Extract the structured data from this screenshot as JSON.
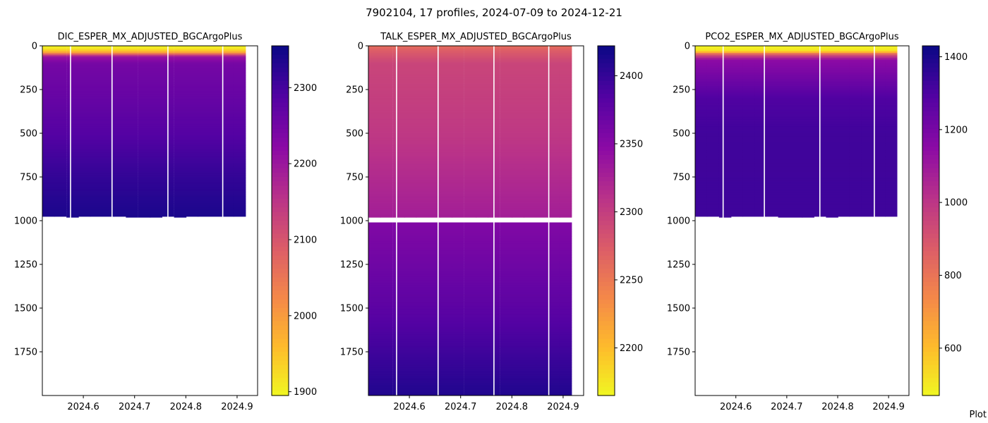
{
  "figure": {
    "title": "7902104, 17 profiles, 2024-07-09 to 2024-12-21",
    "watermark": "Plot"
  },
  "chart_data": [
    {
      "type": "heatmap",
      "title": "DIC_ESPER_MX_ADJUSTED_BGCArgoPlus",
      "xlabel": "",
      "ylabel": "",
      "xlim": [
        2024.52,
        2024.94
      ],
      "ylim": [
        2000,
        0
      ],
      "x_ticks": [
        2024.6,
        2024.7,
        2024.8,
        2024.9
      ],
      "x_tick_labels": [
        "2024.6",
        "2024.7",
        "2024.8",
        "2024.9"
      ],
      "y_ticks": [
        0,
        250,
        500,
        750,
        1000,
        1250,
        1500,
        1750
      ],
      "y_tick_labels": [
        "0",
        "250",
        "500",
        "750",
        "1000",
        "1250",
        "1500",
        "1750"
      ],
      "colormap": "plasma_r",
      "color_range": [
        1895,
        2355
      ],
      "colorbar_ticks": [
        1900,
        2000,
        2100,
        2200,
        2300
      ],
      "colorbar_tick_labels": [
        "1900",
        "2000",
        "2100",
        "2200",
        "2300"
      ],
      "profile_x": [
        2024.52,
        2024.543,
        2024.567,
        2024.59,
        2024.613,
        2024.637,
        2024.66,
        2024.683,
        2024.707,
        2024.73,
        2024.753,
        2024.777,
        2024.8,
        2024.823,
        2024.847,
        2024.87,
        2024.893
      ],
      "profile_width": 0.0233,
      "gap_x": [
        2024.575,
        2024.656,
        2024.765,
        2024.872
      ],
      "max_depth": [
        975,
        975,
        980,
        975,
        975,
        975,
        975,
        980,
        980,
        980,
        975,
        980,
        975,
        975,
        975,
        975,
        975
      ],
      "depth_gap": [],
      "color_stops": [
        {
          "depth": 0,
          "value": 1900
        },
        {
          "depth": 20,
          "value": 1920
        },
        {
          "depth": 40,
          "value": 2000
        },
        {
          "depth": 60,
          "value": 2200
        },
        {
          "depth": 100,
          "value": 2250
        },
        {
          "depth": 300,
          "value": 2268
        },
        {
          "depth": 500,
          "value": 2288
        },
        {
          "depth": 750,
          "value": 2320
        },
        {
          "depth": 1000,
          "value": 2345
        }
      ]
    },
    {
      "type": "heatmap",
      "title": "TALK_ESPER_MX_ADJUSTED_BGCArgoPlus",
      "xlabel": "",
      "ylabel": "",
      "xlim": [
        2024.52,
        2024.94
      ],
      "ylim": [
        2000,
        0
      ],
      "x_ticks": [
        2024.6,
        2024.7,
        2024.8,
        2024.9
      ],
      "x_tick_labels": [
        "2024.6",
        "2024.7",
        "2024.8",
        "2024.9"
      ],
      "y_ticks": [
        0,
        250,
        500,
        750,
        1000,
        1250,
        1500,
        1750
      ],
      "y_tick_labels": [
        "0",
        "250",
        "500",
        "750",
        "1000",
        "1250",
        "1500",
        "1750"
      ],
      "colormap": "plasma_r",
      "color_range": [
        2165,
        2422
      ],
      "colorbar_ticks": [
        2200,
        2250,
        2300,
        2350,
        2400
      ],
      "colorbar_tick_labels": [
        "2200",
        "2250",
        "2300",
        "2350",
        "2400"
      ],
      "profile_x": [
        2024.52,
        2024.543,
        2024.567,
        2024.59,
        2024.613,
        2024.637,
        2024.66,
        2024.683,
        2024.707,
        2024.73,
        2024.753,
        2024.777,
        2024.8,
        2024.823,
        2024.847,
        2024.87,
        2024.893
      ],
      "profile_width": 0.0233,
      "gap_x": [
        2024.575,
        2024.656,
        2024.765,
        2024.872
      ],
      "max_depth": [
        2000,
        2000,
        2000,
        2000,
        2000,
        2000,
        2000,
        2000,
        2000,
        2000,
        2000,
        2000,
        2000,
        2000,
        2000,
        2000,
        2000
      ],
      "depth_gap": [
        980,
        1002
      ],
      "color_stops": [
        {
          "depth": 0,
          "value": 2260
        },
        {
          "depth": 30,
          "value": 2275
        },
        {
          "depth": 100,
          "value": 2295
        },
        {
          "depth": 500,
          "value": 2306
        },
        {
          "depth": 980,
          "value": 2330
        },
        {
          "depth": 1002,
          "value": 2355
        },
        {
          "depth": 1500,
          "value": 2380
        },
        {
          "depth": 2000,
          "value": 2412
        }
      ]
    },
    {
      "type": "heatmap",
      "title": "PCO2_ESPER_MX_ADJUSTED_BGCArgoPlus",
      "xlabel": "",
      "ylabel": "",
      "xlim": [
        2024.52,
        2024.94
      ],
      "ylim": [
        2000,
        0
      ],
      "x_ticks": [
        2024.6,
        2024.7,
        2024.8,
        2024.9
      ],
      "x_tick_labels": [
        "2024.6",
        "2024.7",
        "2024.8",
        "2024.9"
      ],
      "y_ticks": [
        0,
        250,
        500,
        750,
        1000,
        1250,
        1500,
        1750
      ],
      "y_tick_labels": [
        "0",
        "250",
        "500",
        "750",
        "1000",
        "1250",
        "1500",
        "1750"
      ],
      "colormap": "plasma_r",
      "color_range": [
        470,
        1430
      ],
      "colorbar_ticks": [
        600,
        800,
        1000,
        1200,
        1400
      ],
      "colorbar_tick_labels": [
        "600",
        "800",
        "1000",
        "1200",
        "1400"
      ],
      "profile_x": [
        2024.52,
        2024.543,
        2024.567,
        2024.59,
        2024.613,
        2024.637,
        2024.66,
        2024.683,
        2024.707,
        2024.73,
        2024.753,
        2024.777,
        2024.8,
        2024.823,
        2024.847,
        2024.87,
        2024.893
      ],
      "profile_width": 0.0233,
      "gap_x": [
        2024.575,
        2024.656,
        2024.765,
        2024.872
      ],
      "max_depth": [
        975,
        975,
        980,
        975,
        975,
        975,
        975,
        980,
        980,
        980,
        975,
        980,
        975,
        975,
        975,
        975,
        975
      ],
      "depth_gap": [],
      "color_stops": [
        {
          "depth": 0,
          "value": 480
        },
        {
          "depth": 30,
          "value": 520
        },
        {
          "depth": 50,
          "value": 900
        },
        {
          "depth": 80,
          "value": 1150
        },
        {
          "depth": 300,
          "value": 1300
        },
        {
          "depth": 500,
          "value": 1330
        },
        {
          "depth": 1000,
          "value": 1335
        }
      ]
    }
  ]
}
